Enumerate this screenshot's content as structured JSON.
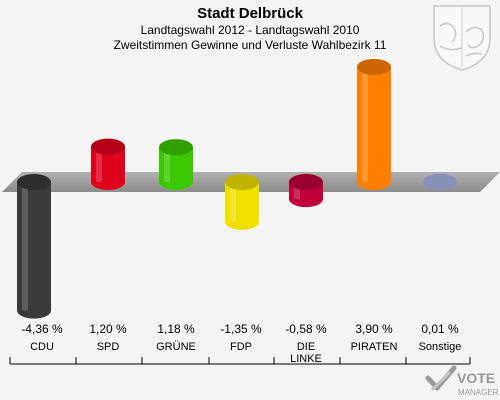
{
  "chart_data": {
    "type": "bar",
    "title": "Stadt Delbrück",
    "subtitle": "Landtagswahl 2012 - Landtagswahl 2010",
    "subtitle2": "Zweitstimmen Gewinne und Verluste Wahlbezirk 11",
    "categories": [
      "CDU",
      "SPD",
      "GRÜNE",
      "FDP",
      "DIE LINKE",
      "PIRATEN",
      "Sonstige"
    ],
    "values": [
      -4.36,
      1.2,
      1.18,
      -1.35,
      -0.58,
      3.9,
      0.01
    ],
    "value_labels": [
      "-4,36 %",
      "1,20 %",
      "1,18 %",
      "-1,35 %",
      "-0,58 %",
      "3,90 %",
      "0,01 %"
    ],
    "colors": [
      "#3a3a3a",
      "#e0001b",
      "#3cc800",
      "#f0e000",
      "#c0003a",
      "#ff8000",
      "#aab4e6"
    ],
    "baseline": 0
  },
  "branding": {
    "vote_word": "VOTE",
    "manager_word": "MANAGER",
    "icon": "crest-icon"
  }
}
